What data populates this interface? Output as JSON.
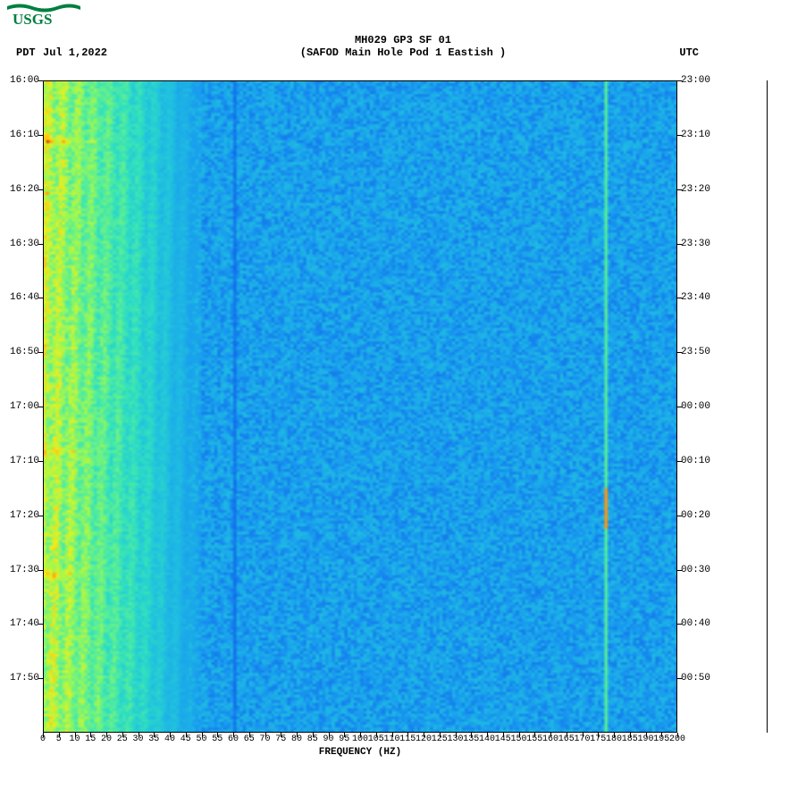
{
  "logo_text": "USGS",
  "logo_color": "#007f3f",
  "header": {
    "pdt_label": "PDT",
    "date": "Jul 1,2022",
    "title_line1": "MH029 GP3 SF 01",
    "title_line2": "(SAFOD Main Hole Pod 1 Eastish )",
    "utc_label": "UTC"
  },
  "spectrogram": {
    "type": "heatmap-spectrogram",
    "xlabel": "FREQUENCY (HZ)",
    "x_axis": {
      "min": 0,
      "max": 200,
      "tick_step": 5,
      "ticks": [
        0,
        5,
        10,
        15,
        20,
        25,
        30,
        35,
        40,
        45,
        50,
        55,
        60,
        65,
        70,
        75,
        80,
        85,
        90,
        95,
        100,
        105,
        110,
        115,
        120,
        125,
        130,
        135,
        140,
        145,
        150,
        155,
        160,
        165,
        170,
        175,
        180,
        185,
        190,
        195,
        200
      ]
    },
    "y_axis_left": {
      "label": "PDT",
      "t_start_min": 960,
      "t_end_min": 1080,
      "tick_step_min": 10,
      "tick_labels": [
        "16:00",
        "16:10",
        "16:20",
        "16:30",
        "16:40",
        "16:50",
        "17:00",
        "17:10",
        "17:20",
        "17:30",
        "17:40",
        "17:50"
      ]
    },
    "y_axis_right": {
      "label": "UTC",
      "tick_labels": [
        "23:00",
        "23:10",
        "23:20",
        "23:30",
        "23:40",
        "23:50",
        "00:00",
        "00:10",
        "00:20",
        "00:30",
        "00:40",
        "00:50"
      ]
    },
    "colormap": {
      "name": "jet-like",
      "stops": [
        [
          0.0,
          "#0832c8"
        ],
        [
          0.1,
          "#1060e8"
        ],
        [
          0.2,
          "#1898f0"
        ],
        [
          0.3,
          "#20c0e0"
        ],
        [
          0.4,
          "#30e0c0"
        ],
        [
          0.5,
          "#60f090"
        ],
        [
          0.6,
          "#a0f850"
        ],
        [
          0.7,
          "#e8f020"
        ],
        [
          0.8,
          "#ffc010"
        ],
        [
          0.9,
          "#ff7008"
        ],
        [
          1.0,
          "#e01000"
        ]
      ]
    },
    "background_intensity": 0.22,
    "low_freq_band": {
      "freq_max_hz": 50,
      "base_intensity": 0.55
    },
    "vertical_lines": [
      {
        "freq_hz": 60,
        "intensity": 0.1,
        "width": 1
      },
      {
        "freq_hz": 177,
        "intensity": 0.58,
        "width": 1
      }
    ],
    "events": [
      {
        "t_start_min": 968,
        "t_end_min": 974,
        "freq_max_hz": 46,
        "peak_intensity": 0.95
      },
      {
        "t_start_min": 979,
        "t_end_min": 982,
        "freq_max_hz": 40,
        "peak_intensity": 0.85
      },
      {
        "t_start_min": 1012,
        "t_end_min": 1020,
        "freq_max_hz": 35,
        "peak_intensity": 0.8
      },
      {
        "t_start_min": 1024,
        "t_end_min": 1032,
        "freq_max_hz": 42,
        "peak_intensity": 0.95
      },
      {
        "t_start_min": 1045,
        "t_end_min": 1056,
        "freq_max_hz": 44,
        "peak_intensity": 0.92
      },
      {
        "t_start_min": 1060,
        "t_end_min": 1080,
        "freq_max_hz": 30,
        "peak_intensity": 0.7
      }
    ],
    "line177_hotspot": {
      "t_min": 1035,
      "t_end": 1042,
      "intensity": 0.85
    },
    "noise_seed": 7,
    "grid_cols": 200,
    "grid_rows": 240,
    "title_fontsize": 12,
    "axis_fontsize": 11,
    "tick_fontsize": 10,
    "plot_bg": "#ffffff",
    "frame_color": "#000000"
  }
}
